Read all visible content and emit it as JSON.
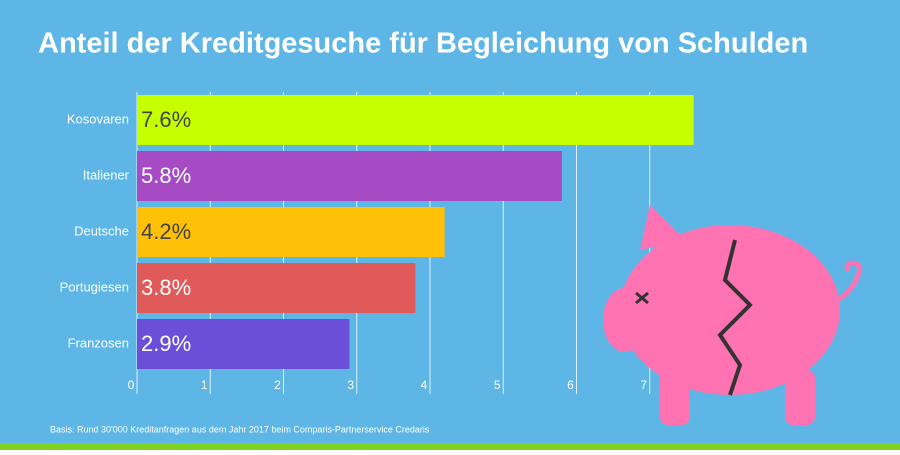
{
  "chart_data": {
    "type": "hbar",
    "title": "Anteil der Kreditgesuche für Begleichung von Schulden",
    "categories": [
      "Kosovaren",
      "Italiener",
      "Deutsche",
      "Portugiesen",
      "Franzosen"
    ],
    "values": [
      7.6,
      5.8,
      4.2,
      3.8,
      2.9
    ],
    "value_labels": [
      "7.6%",
      "5.8%",
      "4.2%",
      "3.8%",
      "2.9%"
    ],
    "colors": [
      "#c6ff00",
      "#a64bc4",
      "#ffc107",
      "#e05a5a",
      "#6c4fd8"
    ],
    "value_label_colors": [
      "#444444",
      "#ffffff",
      "#444444",
      "#ffffff",
      "#ffffff"
    ],
    "xlim": [
      0,
      8
    ],
    "xticks": [
      0,
      1,
      2,
      3,
      4,
      5,
      6,
      7
    ],
    "grid": true,
    "footnote": "Basis: Rund 30'000 Kreditanfragen aus dem Jahr 2017 beim Comparis-Partnerservice Credaris"
  }
}
